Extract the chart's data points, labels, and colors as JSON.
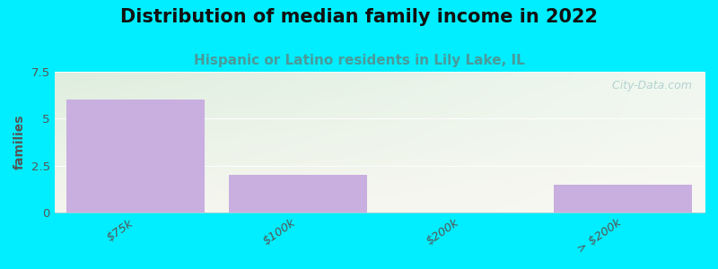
{
  "title": "Distribution of median family income in 2022",
  "subtitle": "Hispanic or Latino residents in Lily Lake, IL",
  "categories": [
    "$75k",
    "$100k",
    "$200k",
    "> $200k"
  ],
  "values": [
    6.0,
    2.0,
    0.0,
    1.5
  ],
  "bar_color": "#c9aee0",
  "bar_edgecolor": "#c9aee0",
  "ylabel": "families",
  "ylim": [
    0,
    7.5
  ],
  "yticks": [
    0,
    2.5,
    5,
    7.5
  ],
  "background_color": "#00eeff",
  "plot_bg_color_topleft": "#deeede",
  "plot_bg_color_bottomright": "#f5f5ee",
  "title_fontsize": 15,
  "subtitle_fontsize": 11,
  "subtitle_color": "#4a9a9a",
  "watermark": " City-Data.com",
  "watermark_color": "#aacccc"
}
